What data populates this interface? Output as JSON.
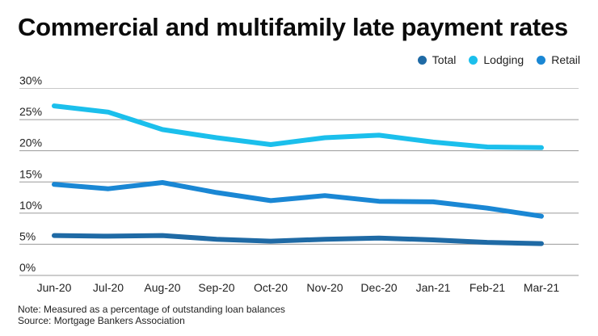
{
  "chart_data": {
    "type": "line",
    "title": "Commercial and multifamily late payment rates",
    "xlabel": "",
    "ylabel": "",
    "x": [
      "Jun-20",
      "Jul-20",
      "Aug-20",
      "Sep-20",
      "Oct-20",
      "Nov-20",
      "Dec-20",
      "Jan-21",
      "Feb-21",
      "Mar-21"
    ],
    "ylim": [
      0,
      30
    ],
    "yticks": [
      0,
      5,
      10,
      15,
      20,
      25,
      30
    ],
    "ytick_labels": [
      "0%",
      "5%",
      "10%",
      "15%",
      "20%",
      "25%",
      "30%"
    ],
    "grid": true,
    "legend_position": "top-right",
    "series": [
      {
        "name": "Total",
        "color": "#1f6aa5",
        "values": [
          6.4,
          6.3,
          6.4,
          5.8,
          5.5,
          5.8,
          6.0,
          5.7,
          5.3,
          5.1
        ]
      },
      {
        "name": "Lodging",
        "color": "#1bbfec",
        "values": [
          27.2,
          26.2,
          23.4,
          22.1,
          21.0,
          22.1,
          22.5,
          21.4,
          20.6,
          20.5
        ]
      },
      {
        "name": "Retail",
        "color": "#1a87d4",
        "values": [
          14.6,
          13.9,
          14.9,
          13.3,
          12.0,
          12.8,
          11.9,
          11.8,
          10.8,
          9.5
        ]
      }
    ],
    "notes": [
      "Note: Measured as a percentage of outstanding loan balances",
      "Source: Mortgage Bankers Association"
    ]
  }
}
